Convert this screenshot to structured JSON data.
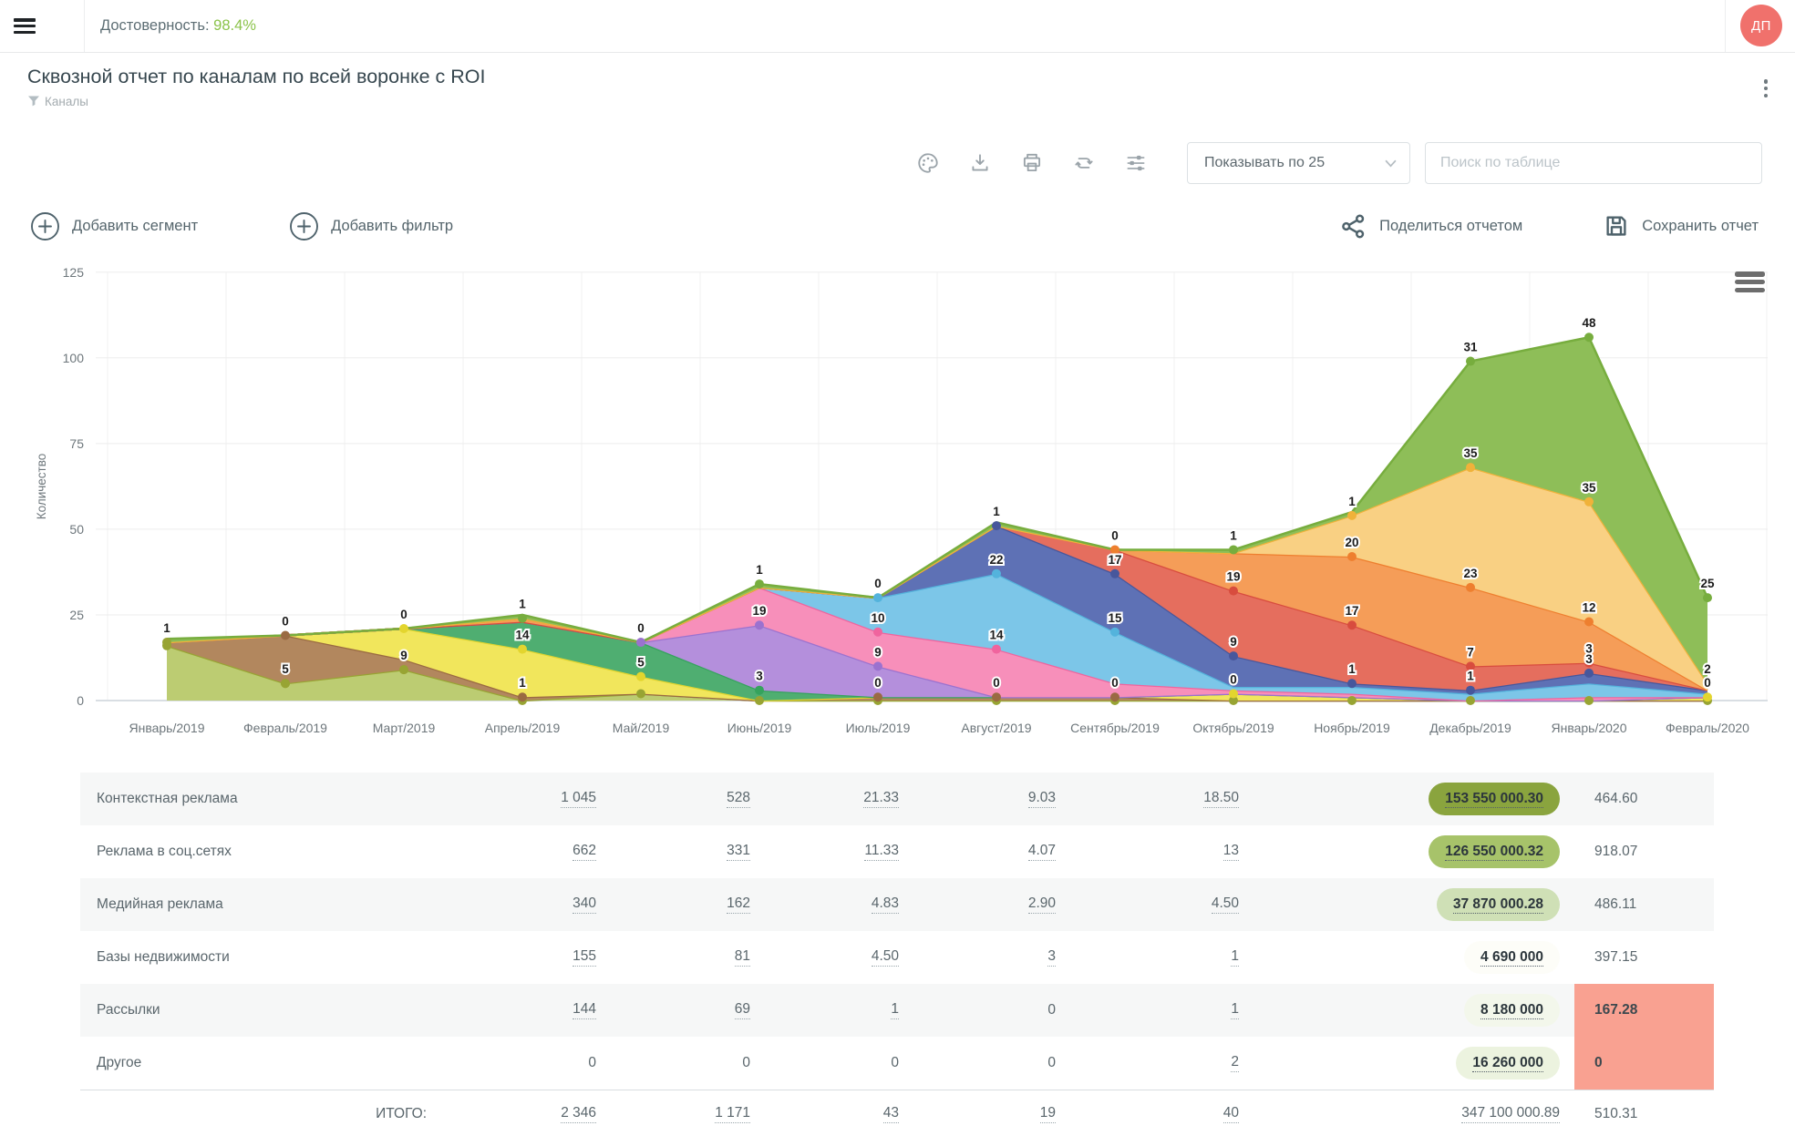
{
  "header": {
    "confidence_label": "Достоверность:",
    "confidence_value": "98.4%",
    "avatar": "ДП",
    "icons": [
      "hamburger-icon",
      "avatar"
    ]
  },
  "report": {
    "title": "Сквозной отчет по каналам по всей воронке с ROI",
    "subtitle": "Каналы"
  },
  "toolbar": {
    "icons": [
      "palette-icon",
      "download-icon",
      "print-icon",
      "refresh-icon",
      "flow-settings-icon"
    ],
    "page_size_label": "Показывать по 25",
    "search_placeholder": "Поиск по таблице"
  },
  "actions": {
    "add_segment": "Добавить сегмент",
    "add_filter": "Добавить фильтр",
    "share": "Поделиться отчетом",
    "save": "Сохранить отчет"
  },
  "chart_data": {
    "type": "area",
    "stacked": true,
    "ylabel": "Количество",
    "ylim": [
      0,
      125
    ],
    "yticks": [
      0,
      25,
      50,
      75,
      100,
      125
    ],
    "grid": true,
    "legend_position": "none",
    "categories": [
      "Январь/2019",
      "Февраль/2019",
      "Март/2019",
      "Апрель/2019",
      "Май/2019",
      "Июнь/2019",
      "Июль/2019",
      "Август/2019",
      "Сентябрь/2019",
      "Октябрь/2019",
      "Ноябрь/2019",
      "Декабрь/2019",
      "Январь/2020",
      "Февраль/2020"
    ],
    "series": [
      {
        "name": "olive",
        "color": "#98a433",
        "fill": "#bccc72",
        "values": [
          16,
          5,
          9,
          0,
          2,
          0,
          0,
          0,
          0,
          0,
          0,
          0,
          0,
          0
        ]
      },
      {
        "name": "brown",
        "color": "#9a6a42",
        "fill": "#b2875e",
        "values": [
          1,
          14,
          3,
          1,
          0,
          0,
          1,
          1,
          1,
          0,
          0,
          0,
          0,
          0
        ]
      },
      {
        "name": "yellow",
        "color": "#e3d52e",
        "fill": "#f1e65c",
        "values": [
          0,
          0,
          9,
          14,
          5,
          0,
          0,
          0,
          0,
          2,
          1,
          0,
          0,
          1
        ]
      },
      {
        "name": "seagreen",
        "color": "#35a35d",
        "fill": "#4fae71",
        "values": [
          0,
          0,
          0,
          8,
          10,
          3,
          0,
          0,
          0,
          0,
          0,
          0,
          0,
          0
        ]
      },
      {
        "name": "purple",
        "color": "#9b72cf",
        "fill": "#b48fdc",
        "values": [
          0,
          0,
          0,
          0,
          0,
          19,
          9,
          0,
          0,
          0,
          0,
          0,
          0,
          0
        ]
      },
      {
        "name": "pink",
        "color": "#f0649e",
        "fill": "#f78fba",
        "values": [
          0,
          0,
          0,
          0,
          0,
          11,
          10,
          14,
          4,
          1,
          1,
          0,
          1,
          0
        ]
      },
      {
        "name": "skyblue",
        "color": "#54b3dc",
        "fill": "#7cc6e8",
        "values": [
          0,
          0,
          0,
          0,
          0,
          0,
          10,
          22,
          15,
          1,
          2,
          2,
          4,
          1
        ]
      },
      {
        "name": "indigo",
        "color": "#47579c",
        "fill": "#5e71b5",
        "values": [
          0,
          0,
          0,
          0,
          0,
          0,
          0,
          14,
          17,
          9,
          1,
          1,
          3,
          1
        ]
      },
      {
        "name": "red",
        "color": "#d84c3e",
        "fill": "#e56e5e",
        "values": [
          0,
          0,
          0,
          0,
          0,
          0,
          0,
          0,
          7,
          19,
          17,
          7,
          3,
          0
        ]
      },
      {
        "name": "orange",
        "color": "#ee7f2f",
        "fill": "#f59d58",
        "values": [
          0,
          0,
          0,
          1,
          0,
          0,
          0,
          0,
          0,
          11,
          20,
          23,
          12,
          0
        ]
      },
      {
        "name": "amber",
        "color": "#f0b23a",
        "fill": "#f9d083",
        "values": [
          0,
          0,
          0,
          0,
          0,
          0,
          0,
          0,
          0,
          0,
          12,
          35,
          35,
          2
        ]
      },
      {
        "name": "green",
        "color": "#77ad3e",
        "fill": "#8ebe58",
        "values": [
          1,
          0,
          0,
          1,
          0,
          1,
          0,
          1,
          0,
          1,
          1,
          31,
          48,
          25
        ]
      }
    ],
    "point_labels": [
      {
        "m": 0,
        "v": 1,
        "y": 17,
        "s": 0
      },
      {
        "m": 1,
        "v": 0,
        "y": 19,
        "s": 1
      },
      {
        "m": 1,
        "v": 5,
        "y": 5,
        "s": 0
      },
      {
        "m": 2,
        "v": 0,
        "y": 21,
        "s": 2
      },
      {
        "m": 2,
        "v": 9,
        "y": 9,
        "s": 0
      },
      {
        "m": 3,
        "v": 1,
        "y": 24,
        "s": 11
      },
      {
        "m": 3,
        "v": 14,
        "y": 15,
        "s": 2
      },
      {
        "m": 3,
        "v": 1,
        "y": 1,
        "s": 1
      },
      {
        "m": 4,
        "v": 0,
        "y": 17,
        "s": 4
      },
      {
        "m": 4,
        "v": 5,
        "y": 7,
        "s": 2
      },
      {
        "m": 5,
        "v": 1,
        "y": 34,
        "s": 11
      },
      {
        "m": 5,
        "v": 19,
        "y": 22,
        "s": 4
      },
      {
        "m": 5,
        "v": 3,
        "y": 3,
        "s": 3
      },
      {
        "m": 6,
        "v": 0,
        "y": 30,
        "s": 6
      },
      {
        "m": 6,
        "v": 10,
        "y": 20,
        "s": 5
      },
      {
        "m": 6,
        "v": 9,
        "y": 10,
        "s": 4
      },
      {
        "m": 6,
        "v": 0,
        "y": 1,
        "s": 1
      },
      {
        "m": 7,
        "v": 1,
        "y": 51,
        "s": 7
      },
      {
        "m": 7,
        "v": 22,
        "y": 37,
        "s": 6
      },
      {
        "m": 7,
        "v": 14,
        "y": 15,
        "s": 5
      },
      {
        "m": 7,
        "v": 0,
        "y": 1,
        "s": 1
      },
      {
        "m": 8,
        "v": 0,
        "y": 44,
        "s": 9
      },
      {
        "m": 8,
        "v": 17,
        "y": 37,
        "s": 7
      },
      {
        "m": 8,
        "v": 15,
        "y": 20,
        "s": 6
      },
      {
        "m": 8,
        "v": 0,
        "y": 1,
        "s": 1
      },
      {
        "m": 9,
        "v": 1,
        "y": 44,
        "s": 11
      },
      {
        "m": 9,
        "v": 19,
        "y": 32,
        "s": 8
      },
      {
        "m": 9,
        "v": 9,
        "y": 13,
        "s": 7
      },
      {
        "m": 9,
        "v": 0,
        "y": 2,
        "s": 2
      },
      {
        "m": 10,
        "v": 1,
        "y": 54,
        "s": 10
      },
      {
        "m": 10,
        "v": 20,
        "y": 42,
        "s": 9
      },
      {
        "m": 10,
        "v": 17,
        "y": 22,
        "s": 8
      },
      {
        "m": 10,
        "v": 1,
        "y": 5,
        "s": 7
      },
      {
        "m": 11,
        "v": 31,
        "y": 99,
        "s": 11
      },
      {
        "m": 11,
        "v": 35,
        "y": 68,
        "s": 10
      },
      {
        "m": 11,
        "v": 23,
        "y": 33,
        "s": 9
      },
      {
        "m": 11,
        "v": 7,
        "y": 10,
        "s": 8
      },
      {
        "m": 11,
        "v": 1,
        "y": 3,
        "s": 7
      },
      {
        "m": 12,
        "v": 48,
        "y": 106,
        "s": 11
      },
      {
        "m": 12,
        "v": 35,
        "y": 58,
        "s": 10
      },
      {
        "m": 12,
        "v": 12,
        "y": 23,
        "s": 9
      },
      {
        "m": 12,
        "v": 3,
        "y": 11,
        "s": 8
      },
      {
        "m": 12,
        "v": 3,
        "y": 8,
        "s": 7
      },
      {
        "m": 13,
        "v": 25,
        "y": 30,
        "s": 11
      },
      {
        "m": 13,
        "v": 2,
        "y": 5,
        "s": 10
      },
      {
        "m": 13,
        "v": 0,
        "y": 1,
        "s": 2
      }
    ]
  },
  "table": {
    "total_label": "ИТОГО:",
    "highlight_color": "#f9a191",
    "rows": [
      {
        "name": "Контекстная реклама",
        "cells": [
          {
            "t": "1 045",
            "u": true
          },
          {
            "t": "528",
            "u": true
          },
          {
            "t": "21.33",
            "u": true
          },
          {
            "t": "9.03",
            "u": true
          },
          {
            "t": "18.50",
            "u": true
          }
        ],
        "budget": {
          "t": "153 550 000.30",
          "u": true,
          "bg": "#8aa43e"
        },
        "roi": {
          "t": "464.60",
          "hl": false
        }
      },
      {
        "name": "Реклама в соц.сетях",
        "cells": [
          {
            "t": "662",
            "u": true
          },
          {
            "t": "331",
            "u": true
          },
          {
            "t": "11.33",
            "u": true
          },
          {
            "t": "4.07",
            "u": true
          },
          {
            "t": "13",
            "u": true
          }
        ],
        "budget": {
          "t": "126 550 000.32",
          "u": true,
          "bg": "#a7c36a"
        },
        "roi": {
          "t": "918.07",
          "hl": false
        }
      },
      {
        "name": "Медийная реклама",
        "cells": [
          {
            "t": "340",
            "u": true
          },
          {
            "t": "162",
            "u": true
          },
          {
            "t": "4.83",
            "u": true
          },
          {
            "t": "2.90",
            "u": true
          },
          {
            "t": "4.50",
            "u": true
          }
        ],
        "budget": {
          "t": "37 870 000.28",
          "u": true,
          "bg": "#cfe0b6"
        },
        "roi": {
          "t": "486.11",
          "hl": false
        }
      },
      {
        "name": "Базы недвижимости",
        "cells": [
          {
            "t": "155",
            "u": true
          },
          {
            "t": "81",
            "u": true
          },
          {
            "t": "4.50",
            "u": true
          },
          {
            "t": "3",
            "u": true
          },
          {
            "t": "1",
            "u": true
          }
        ],
        "budget": {
          "t": "4 690 000",
          "u": true,
          "bg": "#fdfdf8"
        },
        "roi": {
          "t": "397.15",
          "hl": false
        }
      },
      {
        "name": "Рассылки",
        "cells": [
          {
            "t": "144",
            "u": true
          },
          {
            "t": "69",
            "u": true
          },
          {
            "t": "1",
            "u": true
          },
          {
            "t": "0",
            "u": false
          },
          {
            "t": "1",
            "u": true
          }
        ],
        "budget": {
          "t": "8 180 000",
          "u": true,
          "bg": "#f3f7eb"
        },
        "roi": {
          "t": "167.28",
          "hl": true
        }
      },
      {
        "name": "Другое",
        "cells": [
          {
            "t": "0",
            "u": false
          },
          {
            "t": "0",
            "u": false
          },
          {
            "t": "0",
            "u": false
          },
          {
            "t": "0",
            "u": false
          },
          {
            "t": "2",
            "u": true
          }
        ],
        "budget": {
          "t": "16 260 000",
          "u": true,
          "bg": "#ecf3df"
        },
        "roi": {
          "t": "0",
          "hl": true
        }
      }
    ],
    "total": {
      "cells": [
        {
          "t": "2 346",
          "u": true
        },
        {
          "t": "1 171",
          "u": true
        },
        {
          "t": "43",
          "u": true
        },
        {
          "t": "19",
          "u": true
        },
        {
          "t": "40",
          "u": true
        }
      ],
      "budget": {
        "t": "347 100 000.89",
        "u": true
      },
      "roi": {
        "t": "510.31",
        "hl": false
      }
    }
  }
}
